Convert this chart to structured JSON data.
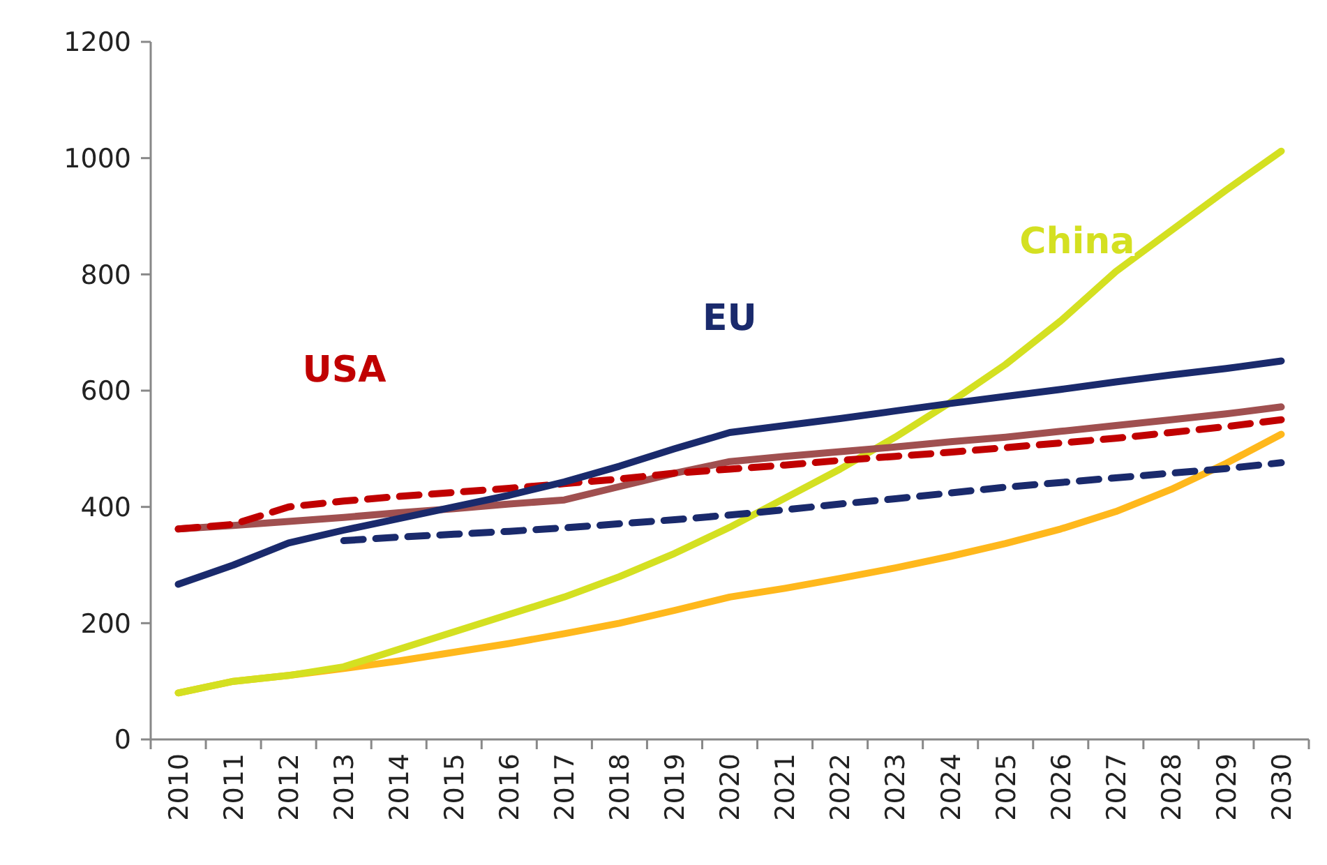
{
  "chart_data": {
    "type": "line",
    "categories": [
      "2010",
      "2011",
      "2012",
      "2013",
      "2014",
      "2015",
      "2016",
      "2017",
      "2018",
      "2019",
      "2020",
      "2021",
      "2022",
      "2023",
      "2024",
      "2025",
      "2026",
      "2027",
      "2028",
      "2029",
      "2030"
    ],
    "ylim": [
      0,
      1200
    ],
    "yticks": [
      0,
      200,
      400,
      600,
      800,
      1000,
      1200
    ],
    "grid": false,
    "marker": "none",
    "series": [
      {
        "color": "#ffb81c",
        "line_style": "solid",
        "values": [
          80,
          100,
          110,
          122,
          135,
          150,
          165,
          182,
          200,
          222,
          245,
          260,
          277,
          295,
          315,
          337,
          362,
          392,
          430,
          475,
          525
        ]
      },
      {
        "name": "China",
        "color": "#d4e021",
        "line_style": "solid",
        "values": [
          80,
          100,
          110,
          125,
          155,
          185,
          215,
          245,
          280,
          320,
          365,
          415,
          465,
          520,
          580,
          645,
          720,
          805,
          875,
          945,
          1012
        ]
      },
      {
        "color": "#1a2a6c",
        "line_style": "dashed",
        "values": [
          null,
          null,
          null,
          342,
          348,
          353,
          358,
          364,
          371,
          378,
          386,
          395,
          405,
          414,
          424,
          434,
          442,
          450,
          458,
          466,
          476
        ]
      },
      {
        "color": "#a05050",
        "line_style": "solid",
        "values": [
          362,
          368,
          375,
          382,
          390,
          397,
          405,
          412,
          435,
          458,
          478,
          487,
          495,
          503,
          512,
          520,
          530,
          540,
          550,
          560,
          572
        ]
      },
      {
        "name": "USA",
        "color": "#c00000",
        "line_style": "dashed",
        "values": [
          362,
          370,
          400,
          410,
          418,
          425,
          432,
          440,
          448,
          458,
          465,
          472,
          480,
          487,
          494,
          502,
          510,
          518,
          528,
          538,
          550
        ]
      },
      {
        "name": "EU",
        "color": "#1a2a6c",
        "line_style": "solid",
        "values": [
          267,
          300,
          338,
          360,
          380,
          400,
          420,
          443,
          470,
          500,
          528,
          540,
          552,
          565,
          578,
          590,
          602,
          615,
          627,
          638,
          651
        ]
      }
    ]
  }
}
